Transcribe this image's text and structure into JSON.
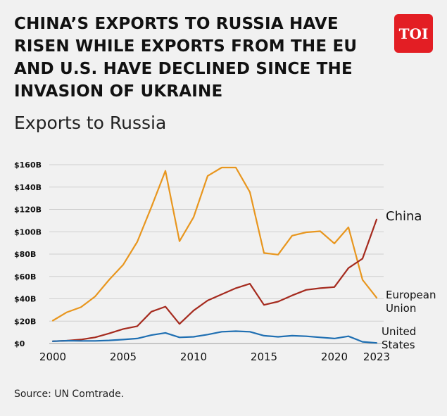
{
  "header": {
    "title": "CHINA’S EXPORTS TO RUSSIA HAVE RISEN WHILE EXPORTS FROM THE EU AND U.S. HAVE DECLINED SINCE THE INVASION OF UKRAINE",
    "logo_text": "TOI",
    "logo_color": "#e31e24"
  },
  "footer": {
    "source": "Source: UN Comtrade."
  },
  "chart_data": {
    "type": "line",
    "title": "Exports to Russia",
    "xlabel": "",
    "ylabel": "",
    "xlim": [
      2000,
      2023
    ],
    "ylim": [
      0,
      160
    ],
    "x_ticks": [
      2000,
      2005,
      2010,
      2015,
      2020,
      2023
    ],
    "y_ticks": [
      0,
      20,
      40,
      60,
      80,
      100,
      120,
      140,
      160
    ],
    "y_tick_labels": [
      "$0",
      "$20B",
      "$40B",
      "$60B",
      "$80B",
      "$100B",
      "$120B",
      "$140B",
      "$160B"
    ],
    "grid": true,
    "legend": "labels at line ends",
    "x": [
      2000,
      2001,
      2002,
      2003,
      2004,
      2005,
      2006,
      2007,
      2008,
      2009,
      2010,
      2011,
      2012,
      2013,
      2014,
      2015,
      2016,
      2017,
      2018,
      2019,
      2020,
      2021,
      2022,
      2023
    ],
    "series": [
      {
        "name": "European Union",
        "label_lines": [
          "European",
          "Union"
        ],
        "color": "#e8961e",
        "values": [
          20.5,
          28,
          32.5,
          42,
          57,
          70.5,
          91,
          122,
          154.5,
          91.5,
          113,
          150,
          157.5,
          157.5,
          135.5,
          81,
          79.5,
          96.5,
          99.5,
          100.5,
          89.5,
          104,
          57,
          41
        ]
      },
      {
        "name": "China",
        "label_lines": [
          "China"
        ],
        "color": "#a52a1e",
        "values": [
          2,
          2.5,
          3.5,
          5.5,
          9,
          13,
          15.5,
          28.5,
          33,
          17.5,
          29.5,
          38.5,
          44,
          49.5,
          53.5,
          34.5,
          37.5,
          43,
          48,
          49.5,
          50.5,
          67.5,
          76,
          111
        ]
      },
      {
        "name": "United States",
        "label_lines": [
          "United",
          "States"
        ],
        "color": "#1f6fb2",
        "values": [
          2,
          2.5,
          2.3,
          2.3,
          2.8,
          3.5,
          4.5,
          7.5,
          9.5,
          5.5,
          6,
          8,
          10.5,
          11,
          10.5,
          7,
          6,
          7,
          6.5,
          5.5,
          4.5,
          6.5,
          1.5,
          0.5
        ]
      }
    ]
  }
}
